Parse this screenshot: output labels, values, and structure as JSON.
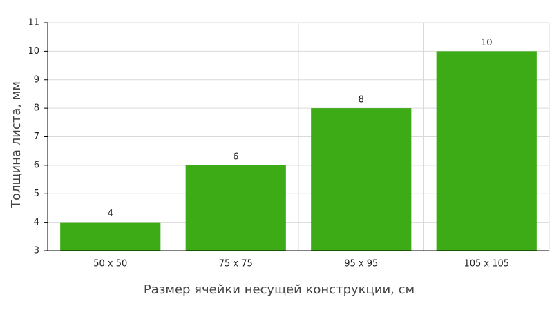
{
  "chart_data": {
    "type": "bar",
    "x_label": "Размер ячейки несущей конструкции, см",
    "y_label": "Толщина листа, мм",
    "categories": [
      "50 x 50",
      "75 x 75",
      "95 x 95",
      "105 x 105"
    ],
    "values": [
      4,
      6,
      8,
      10
    ],
    "color": "#3dab16",
    "ylim": [
      3,
      11
    ],
    "yticks": [
      3,
      4,
      5,
      6,
      7,
      8,
      9,
      10,
      11
    ],
    "grid": true,
    "data_labels": true
  }
}
